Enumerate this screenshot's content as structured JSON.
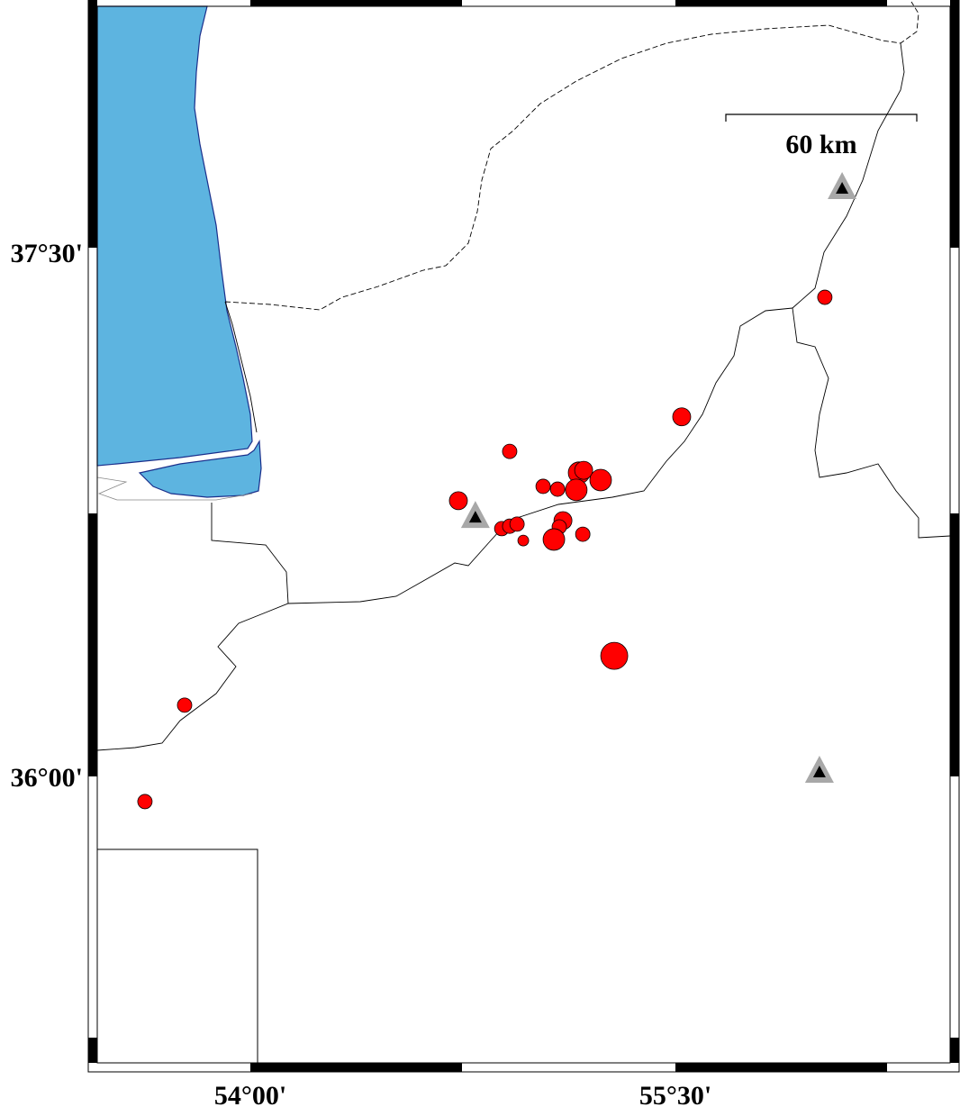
{
  "map": {
    "sea_color": "#5db4e0",
    "coast_color": "#1a2f8c",
    "event_color": "#ff0000",
    "station_outer_color": "#a8a8a8",
    "station_inner_color": "#000000",
    "lon_range": [
      53.5,
      56.6
    ],
    "lat_range": [
      35.2,
      38.2
    ],
    "lon_ticks": [
      {
        "value": 54.0,
        "label": "54°00'"
      },
      {
        "value": 55.5,
        "label": "55°30'"
      }
    ],
    "lat_ticks": [
      {
        "value": 37.5,
        "label": "37°30'"
      },
      {
        "value": 36.0,
        "label": "36°00'"
      }
    ],
    "scale_bar": {
      "label": "60 km",
      "length_km": 60
    },
    "events": [
      {
        "lon": 56.027,
        "lat": 37.371,
        "size_class": 1
      },
      {
        "lon": 55.522,
        "lat": 37.029,
        "size_class": 2
      },
      {
        "lon": 54.915,
        "lat": 36.93,
        "size_class": 1
      },
      {
        "lon": 54.734,
        "lat": 36.789,
        "size_class": 2
      },
      {
        "lon": 55.033,
        "lat": 36.83,
        "size_class": 1
      },
      {
        "lon": 55.084,
        "lat": 36.822,
        "size_class": 1
      },
      {
        "lon": 55.16,
        "lat": 36.869,
        "size_class": 3
      },
      {
        "lon": 55.176,
        "lat": 36.876,
        "size_class": 2
      },
      {
        "lon": 55.236,
        "lat": 36.848,
        "size_class": 3
      },
      {
        "lon": 55.15,
        "lat": 36.82,
        "size_class": 3
      },
      {
        "lon": 54.887,
        "lat": 36.709,
        "size_class": 1
      },
      {
        "lon": 54.915,
        "lat": 36.716,
        "size_class": 1
      },
      {
        "lon": 54.941,
        "lat": 36.722,
        "size_class": 1
      },
      {
        "lon": 54.963,
        "lat": 36.675,
        "size_class": 0
      },
      {
        "lon": 55.103,
        "lat": 36.732,
        "size_class": 2
      },
      {
        "lon": 55.09,
        "lat": 36.714,
        "size_class": 1
      },
      {
        "lon": 55.071,
        "lat": 36.678,
        "size_class": 3
      },
      {
        "lon": 55.173,
        "lat": 36.693,
        "size_class": 1
      },
      {
        "lon": 55.284,
        "lat": 36.345,
        "size_class": 4
      },
      {
        "lon": 53.768,
        "lat": 36.204,
        "size_class": 1
      },
      {
        "lon": 53.628,
        "lat": 35.928,
        "size_class": 1
      }
    ],
    "stations": [
      {
        "lon": 54.794,
        "lat": 36.742
      },
      {
        "lon": 56.088,
        "lat": 37.683
      },
      {
        "lon": 56.008,
        "lat": 36.013
      }
    ]
  }
}
